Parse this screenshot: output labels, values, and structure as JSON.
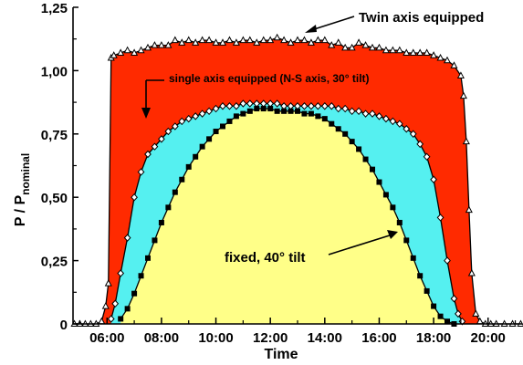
{
  "chart_data": {
    "type": "area",
    "title": "",
    "xlabel": "Time",
    "ylabel_main": "P / P",
    "ylabel_sub": "nominal",
    "xlim": [
      4.75,
      21.25
    ],
    "ylim": [
      0,
      1.25
    ],
    "x_ticks": [
      6,
      8,
      10,
      12,
      14,
      16,
      18,
      20
    ],
    "x_tick_labels": [
      "06:00",
      "08:00",
      "10:00",
      "12:00",
      "14:00",
      "16:00",
      "18:00",
      "20:00"
    ],
    "y_ticks": [
      0,
      0.25,
      0.5,
      0.75,
      1.0,
      1.25
    ],
    "y_tick_labels": [
      "0",
      "0,25",
      "0,50",
      "0,75",
      "1,00",
      "1,25"
    ],
    "grid": false,
    "legend": "none",
    "series": [
      {
        "name": "Twin axis equipped",
        "color": "#ff2a00",
        "marker": "triangle",
        "x": [
          4.8,
          5.0,
          5.2,
          5.4,
          5.6,
          5.8,
          5.95,
          6.05,
          6.15,
          6.25,
          6.5,
          6.75,
          7.0,
          7.25,
          7.5,
          7.75,
          8.0,
          8.25,
          8.5,
          8.75,
          9.0,
          9.25,
          9.5,
          9.75,
          10.0,
          10.25,
          10.5,
          10.75,
          11.0,
          11.25,
          11.5,
          11.75,
          12.0,
          12.25,
          12.5,
          12.75,
          13.0,
          13.25,
          13.5,
          13.75,
          14.0,
          14.25,
          14.5,
          14.75,
          15.0,
          15.25,
          15.5,
          15.75,
          16.0,
          16.25,
          16.5,
          16.75,
          17.0,
          17.25,
          17.5,
          17.75,
          18.0,
          18.25,
          18.5,
          18.75,
          19.0,
          19.1,
          19.2,
          19.3,
          19.4,
          19.55,
          19.7,
          19.9,
          20.1,
          20.3,
          20.6,
          20.9,
          21.2
        ],
        "values": [
          0.0,
          0.0,
          0.0,
          0.0,
          0.0,
          0.01,
          0.07,
          0.16,
          1.05,
          1.06,
          1.07,
          1.08,
          1.07,
          1.08,
          1.09,
          1.1,
          1.1,
          1.1,
          1.12,
          1.11,
          1.12,
          1.11,
          1.12,
          1.12,
          1.11,
          1.11,
          1.12,
          1.11,
          1.12,
          1.12,
          1.11,
          1.12,
          1.12,
          1.13,
          1.12,
          1.11,
          1.12,
          1.12,
          1.11,
          1.12,
          1.12,
          1.1,
          1.11,
          1.09,
          1.09,
          1.11,
          1.1,
          1.09,
          1.09,
          1.08,
          1.08,
          1.08,
          1.07,
          1.07,
          1.07,
          1.07,
          1.06,
          1.05,
          1.04,
          1.02,
          0.98,
          0.9,
          0.72,
          0.45,
          0.2,
          0.04,
          0.01,
          0.0,
          0.0,
          0.0,
          0.0,
          0.0,
          0.0
        ]
      },
      {
        "name": "single axis equipped (N-S axis, 30° tilt)",
        "color": "#55f0f0",
        "marker": "diamond",
        "x": [
          6.15,
          6.3,
          6.5,
          6.75,
          7.0,
          7.25,
          7.5,
          7.75,
          8.0,
          8.25,
          8.5,
          8.75,
          9.0,
          9.25,
          9.5,
          9.75,
          10.0,
          10.25,
          10.5,
          10.75,
          11.0,
          11.25,
          11.5,
          11.75,
          12.0,
          12.25,
          12.5,
          12.75,
          13.0,
          13.25,
          13.5,
          13.75,
          14.0,
          14.25,
          14.5,
          14.75,
          15.0,
          15.25,
          15.5,
          15.75,
          16.0,
          16.25,
          16.5,
          16.75,
          17.0,
          17.25,
          17.5,
          17.75,
          18.0,
          18.25,
          18.5,
          18.75,
          18.9,
          19.05
        ],
        "values": [
          0.02,
          0.08,
          0.2,
          0.34,
          0.5,
          0.6,
          0.67,
          0.7,
          0.73,
          0.76,
          0.78,
          0.8,
          0.81,
          0.82,
          0.83,
          0.84,
          0.85,
          0.86,
          0.86,
          0.86,
          0.87,
          0.87,
          0.87,
          0.87,
          0.87,
          0.87,
          0.86,
          0.86,
          0.86,
          0.86,
          0.86,
          0.86,
          0.86,
          0.86,
          0.85,
          0.85,
          0.84,
          0.84,
          0.83,
          0.83,
          0.82,
          0.81,
          0.8,
          0.79,
          0.77,
          0.75,
          0.71,
          0.66,
          0.57,
          0.42,
          0.25,
          0.1,
          0.04,
          0.01
        ]
      },
      {
        "name": "fixed, 40° tilt",
        "color": "#ffff88",
        "marker": "square",
        "x": [
          6.5,
          6.75,
          7.0,
          7.25,
          7.5,
          7.75,
          8.0,
          8.25,
          8.5,
          8.75,
          9.0,
          9.25,
          9.5,
          9.75,
          10.0,
          10.25,
          10.5,
          10.75,
          11.0,
          11.25,
          11.5,
          11.75,
          12.0,
          12.25,
          12.5,
          12.75,
          13.0,
          13.25,
          13.5,
          13.75,
          14.0,
          14.25,
          14.5,
          14.75,
          15.0,
          15.25,
          15.5,
          15.75,
          16.0,
          16.25,
          16.5,
          16.75,
          17.0,
          17.25,
          17.5,
          17.75,
          18.0,
          18.25,
          18.5,
          18.75
        ],
        "values": [
          0.02,
          0.06,
          0.12,
          0.19,
          0.26,
          0.33,
          0.4,
          0.46,
          0.52,
          0.57,
          0.62,
          0.66,
          0.7,
          0.73,
          0.76,
          0.78,
          0.8,
          0.82,
          0.83,
          0.84,
          0.85,
          0.85,
          0.85,
          0.84,
          0.84,
          0.84,
          0.84,
          0.83,
          0.83,
          0.82,
          0.81,
          0.79,
          0.77,
          0.75,
          0.72,
          0.69,
          0.65,
          0.61,
          0.56,
          0.51,
          0.46,
          0.4,
          0.33,
          0.26,
          0.19,
          0.13,
          0.07,
          0.03,
          0.01,
          0.0
        ]
      }
    ],
    "annotations": [
      "Twin axis equipped",
      "single axis equipped (N-S axis, 30° tilt)",
      "fixed, 40° tilt"
    ]
  }
}
